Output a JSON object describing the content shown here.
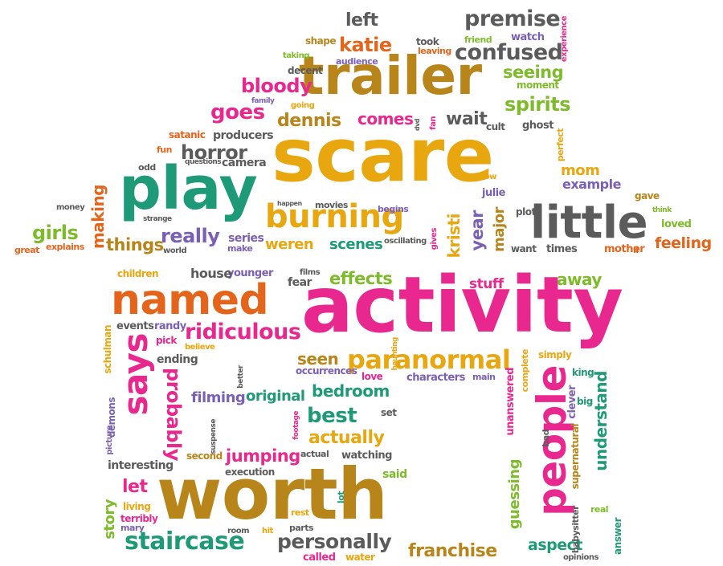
{
  "colors": {
    "pink": "#e8288f",
    "orange": "#e5641b",
    "gold": "#e8a60f",
    "brown": "#b8851a",
    "green": "#7dbb2a",
    "teal": "#1e9a78",
    "purple": "#7a5fb5",
    "gray": "#5b5b5b"
  },
  "words": [
    {
      "text": "scare",
      "color": "gold"
    },
    {
      "text": "activity",
      "color": "pink"
    },
    {
      "text": "worth",
      "color": "brown"
    },
    {
      "text": "trailer",
      "color": "brown"
    },
    {
      "text": "play",
      "color": "teal"
    },
    {
      "text": "little",
      "color": "gray"
    },
    {
      "text": "named",
      "color": "orange"
    },
    {
      "text": "people",
      "color": "pink"
    },
    {
      "text": "says",
      "color": "pink"
    },
    {
      "text": "burning",
      "color": "gold"
    },
    {
      "text": "paranormal",
      "color": "gold"
    },
    {
      "text": "ridiculous",
      "color": "pink"
    },
    {
      "text": "staircase",
      "color": "teal"
    },
    {
      "text": "personally",
      "color": "gray"
    },
    {
      "text": "franchise",
      "color": "brown"
    },
    {
      "text": "premise",
      "color": "gray"
    },
    {
      "text": "confused",
      "color": "gray"
    },
    {
      "text": "katie",
      "color": "orange"
    },
    {
      "text": "left",
      "color": "gray"
    },
    {
      "text": "bloody",
      "color": "pink"
    },
    {
      "text": "goes",
      "color": "pink"
    },
    {
      "text": "dennis",
      "color": "brown"
    },
    {
      "text": "comes",
      "color": "pink"
    },
    {
      "text": "wait",
      "color": "gray"
    },
    {
      "text": "spirits",
      "color": "green"
    },
    {
      "text": "seeing",
      "color": "green"
    },
    {
      "text": "horror",
      "color": "gray"
    },
    {
      "text": "producers",
      "color": "gray"
    },
    {
      "text": "camera",
      "color": "gray"
    },
    {
      "text": "really",
      "color": "purple"
    },
    {
      "text": "things",
      "color": "brown"
    },
    {
      "text": "girls",
      "color": "green"
    },
    {
      "text": "making",
      "color": "orange"
    },
    {
      "text": "series",
      "color": "purple"
    },
    {
      "text": "weren",
      "color": "gold"
    },
    {
      "text": "scenes",
      "color": "teal"
    },
    {
      "text": "movies",
      "color": "gray"
    },
    {
      "text": "begins",
      "color": "purple"
    },
    {
      "text": "kristi",
      "color": "gold"
    },
    {
      "text": "year",
      "color": "purple"
    },
    {
      "text": "major",
      "color": "brown"
    },
    {
      "text": "plot",
      "color": "gray"
    },
    {
      "text": "mom",
      "color": "gold"
    },
    {
      "text": "example",
      "color": "purple"
    },
    {
      "text": "feeling",
      "color": "orange"
    },
    {
      "text": "mother",
      "color": "orange"
    },
    {
      "text": "times",
      "color": "gray"
    },
    {
      "text": "want",
      "color": "gray"
    },
    {
      "text": "loved",
      "color": "green"
    },
    {
      "text": "gave",
      "color": "brown"
    },
    {
      "text": "think",
      "color": "green"
    },
    {
      "text": "ll",
      "color": "orange"
    },
    {
      "text": "effects",
      "color": "green"
    },
    {
      "text": "away",
      "color": "green"
    },
    {
      "text": "stuff",
      "color": "pink"
    },
    {
      "text": "fear",
      "color": "gray"
    },
    {
      "text": "films",
      "color": "gray"
    },
    {
      "text": "younger",
      "color": "purple"
    },
    {
      "text": "house",
      "color": "gray"
    },
    {
      "text": "children",
      "color": "gold"
    },
    {
      "text": "events",
      "color": "gray"
    },
    {
      "text": "randy",
      "color": "purple"
    },
    {
      "text": "pick",
      "color": "pink"
    },
    {
      "text": "believe",
      "color": "gold"
    },
    {
      "text": "ending",
      "color": "gray"
    },
    {
      "text": "probably",
      "color": "pink"
    },
    {
      "text": "filming",
      "color": "purple"
    },
    {
      "text": "original",
      "color": "teal"
    },
    {
      "text": "bedroom",
      "color": "teal"
    },
    {
      "text": "seen",
      "color": "brown"
    },
    {
      "text": "occurrences",
      "color": "purple"
    },
    {
      "text": "love",
      "color": "pink"
    },
    {
      "text": "characters",
      "color": "purple"
    },
    {
      "text": "main",
      "color": "purple"
    },
    {
      "text": "best",
      "color": "teal"
    },
    {
      "text": "actually",
      "color": "gold"
    },
    {
      "text": "set",
      "color": "gray"
    },
    {
      "text": "jumping",
      "color": "pink"
    },
    {
      "text": "second",
      "color": "brown"
    },
    {
      "text": "interesting",
      "color": "gray"
    },
    {
      "text": "actual",
      "color": "gray"
    },
    {
      "text": "watching",
      "color": "gray"
    },
    {
      "text": "execution",
      "color": "gray"
    },
    {
      "text": "let",
      "color": "pink"
    },
    {
      "text": "story",
      "color": "green"
    },
    {
      "text": "living",
      "color": "gold"
    },
    {
      "text": "terribly",
      "color": "pink"
    },
    {
      "text": "mary",
      "color": "purple"
    },
    {
      "text": "room",
      "color": "gray"
    },
    {
      "text": "hit",
      "color": "gold"
    },
    {
      "text": "parts",
      "color": "gray"
    },
    {
      "text": "rest",
      "color": "gold"
    },
    {
      "text": "said",
      "color": "green"
    },
    {
      "text": "called",
      "color": "pink"
    },
    {
      "text": "water",
      "color": "gold"
    },
    {
      "text": "aspect",
      "color": "teal"
    },
    {
      "text": "guessing",
      "color": "green"
    },
    {
      "text": "unanswered",
      "color": "pink"
    },
    {
      "text": "understand",
      "color": "teal"
    },
    {
      "text": "supernatural",
      "color": "brown"
    },
    {
      "text": "clever",
      "color": "purple"
    },
    {
      "text": "big",
      "color": "teal"
    },
    {
      "text": "king",
      "color": "teal"
    },
    {
      "text": "simply",
      "color": "gold"
    },
    {
      "text": "complete",
      "color": "gold"
    },
    {
      "text": "bad",
      "color": "gray"
    },
    {
      "text": "babysitter",
      "color": "gray"
    },
    {
      "text": "answer",
      "color": "teal"
    },
    {
      "text": "real",
      "color": "green"
    },
    {
      "text": "opinions",
      "color": "gray"
    },
    {
      "text": "ghost",
      "color": "gray"
    },
    {
      "text": "cult",
      "color": "gray"
    },
    {
      "text": "perfect",
      "color": "gold"
    },
    {
      "text": "know",
      "color": "gold"
    },
    {
      "text": "julie",
      "color": "purple"
    },
    {
      "text": "moment",
      "color": "green"
    },
    {
      "text": "watch",
      "color": "purple"
    },
    {
      "text": "friend",
      "color": "green"
    },
    {
      "text": "experience",
      "color": "pink"
    },
    {
      "text": "took",
      "color": "gray"
    },
    {
      "text": "leaving",
      "color": "orange"
    },
    {
      "text": "shape",
      "color": "brown"
    },
    {
      "text": "taking",
      "color": "green"
    },
    {
      "text": "audience",
      "color": "purple"
    },
    {
      "text": "decent",
      "color": "gray"
    },
    {
      "text": "family",
      "color": "purple"
    },
    {
      "text": "going",
      "color": "gold"
    },
    {
      "text": "satanic",
      "color": "orange"
    },
    {
      "text": "fun",
      "color": "orange"
    },
    {
      "text": "questions",
      "color": "gray"
    },
    {
      "text": "odd",
      "color": "gray"
    },
    {
      "text": "money",
      "color": "gray"
    },
    {
      "text": "great",
      "color": "orange"
    },
    {
      "text": "explains",
      "color": "orange"
    },
    {
      "text": "strange",
      "color": "gray"
    },
    {
      "text": "make",
      "color": "purple"
    },
    {
      "text": "world",
      "color": "gray"
    },
    {
      "text": "happen",
      "color": "gray"
    },
    {
      "text": "fan",
      "color": "pink"
    },
    {
      "text": "dvd",
      "color": "gray"
    },
    {
      "text": "gives",
      "color": "pink"
    },
    {
      "text": "oscillating",
      "color": "gray"
    },
    {
      "text": "haunting",
      "color": "gold"
    },
    {
      "text": "better",
      "color": "gray"
    },
    {
      "text": "suspense",
      "color": "gray"
    },
    {
      "text": "footage",
      "color": "pink"
    },
    {
      "text": "demons",
      "color": "purple"
    },
    {
      "text": "schulman",
      "color": "gold"
    },
    {
      "text": "picture",
      "color": "purple"
    },
    {
      "text": "lot",
      "color": "teal"
    }
  ]
}
